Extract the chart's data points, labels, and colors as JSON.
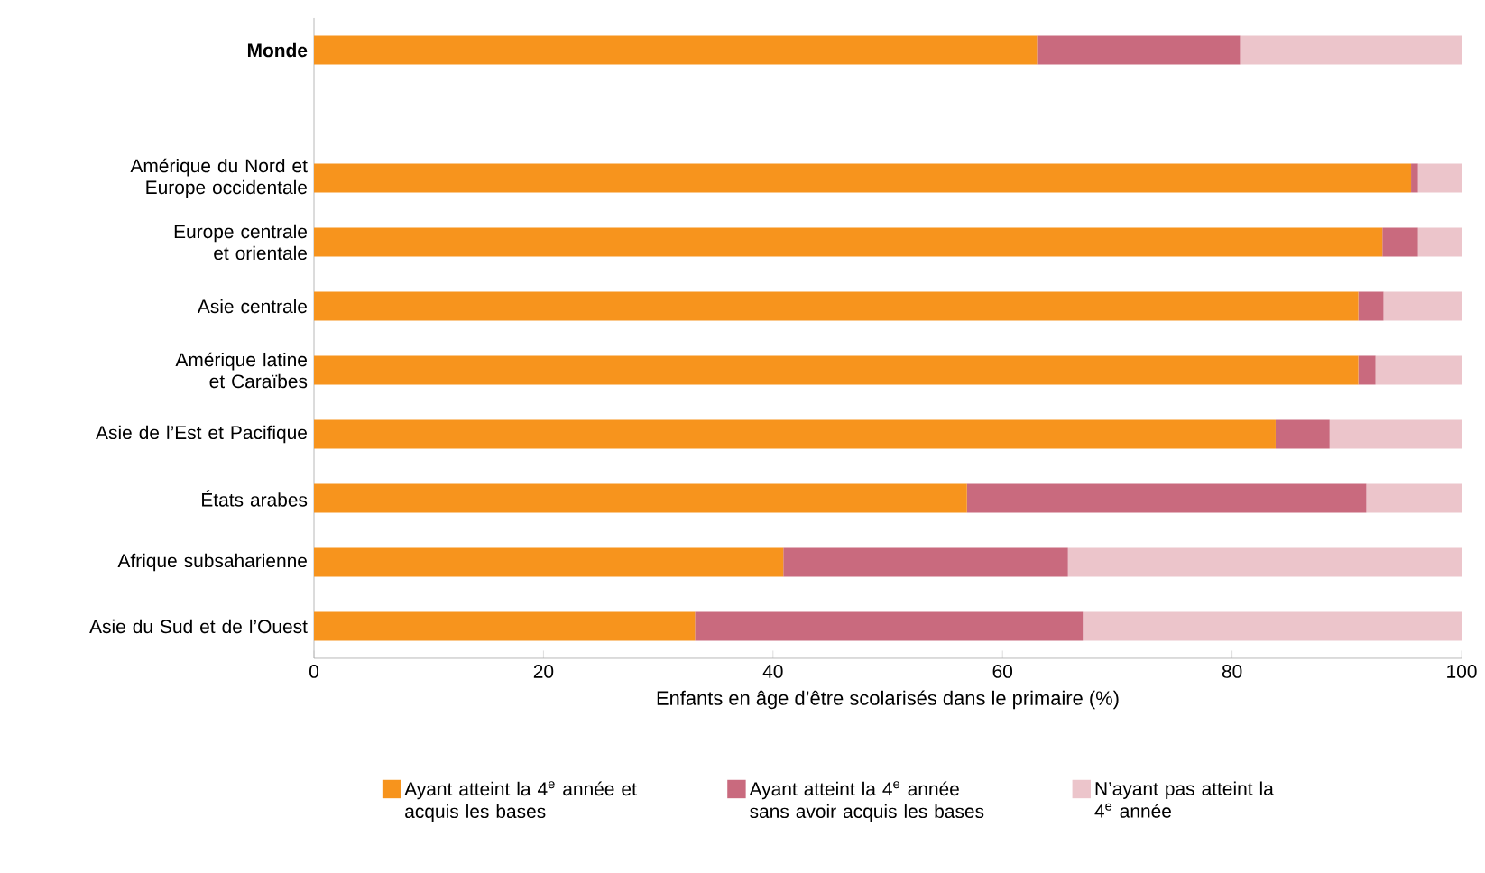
{
  "chart_data": {
    "type": "bar",
    "orientation": "horizontal",
    "stacked": true,
    "categories": [
      "Monde",
      null,
      "Amérique du Nord et Europe occidentale",
      "Europe centrale et orientale",
      "Asie centrale",
      "Amérique latine et Caraïbes",
      "Asie de l’Est et Pacifique",
      "États arabes",
      "Afrique subsaharienne",
      "Asie du Sud et de l’Ouest"
    ],
    "series": [
      {
        "name": "Ayant atteint la 4$^{e}$ année et acquis les bases",
        "color": "#f7941d",
        "values": [
          63.0,
          null,
          95.6,
          93.1,
          91.0,
          91.0,
          83.8,
          56.9,
          40.9,
          33.2
        ]
      },
      {
        "name": "Ayant atteint la 4$^{e}$ année sans avoir acquis les bases",
        "color": "#c96a7e",
        "values": [
          17.7,
          null,
          0.6,
          3.1,
          2.2,
          1.5,
          4.7,
          34.8,
          24.8,
          33.8
        ]
      },
      {
        "name": "N’ayant pas atteint la 4$^{e}$ année",
        "color": "#ecc5cb",
        "values": [
          19.3,
          null,
          3.8,
          3.8,
          6.8,
          7.5,
          11.5,
          8.3,
          34.3,
          33.0
        ]
      }
    ],
    "xlabel": "Enfants en âge d’être scolarisés dans le primaire (%)",
    "xlim": [
      0,
      100
    ],
    "xticks": [
      0,
      20,
      40,
      60,
      80,
      100
    ],
    "grid": false,
    "legend": "bottom"
  }
}
